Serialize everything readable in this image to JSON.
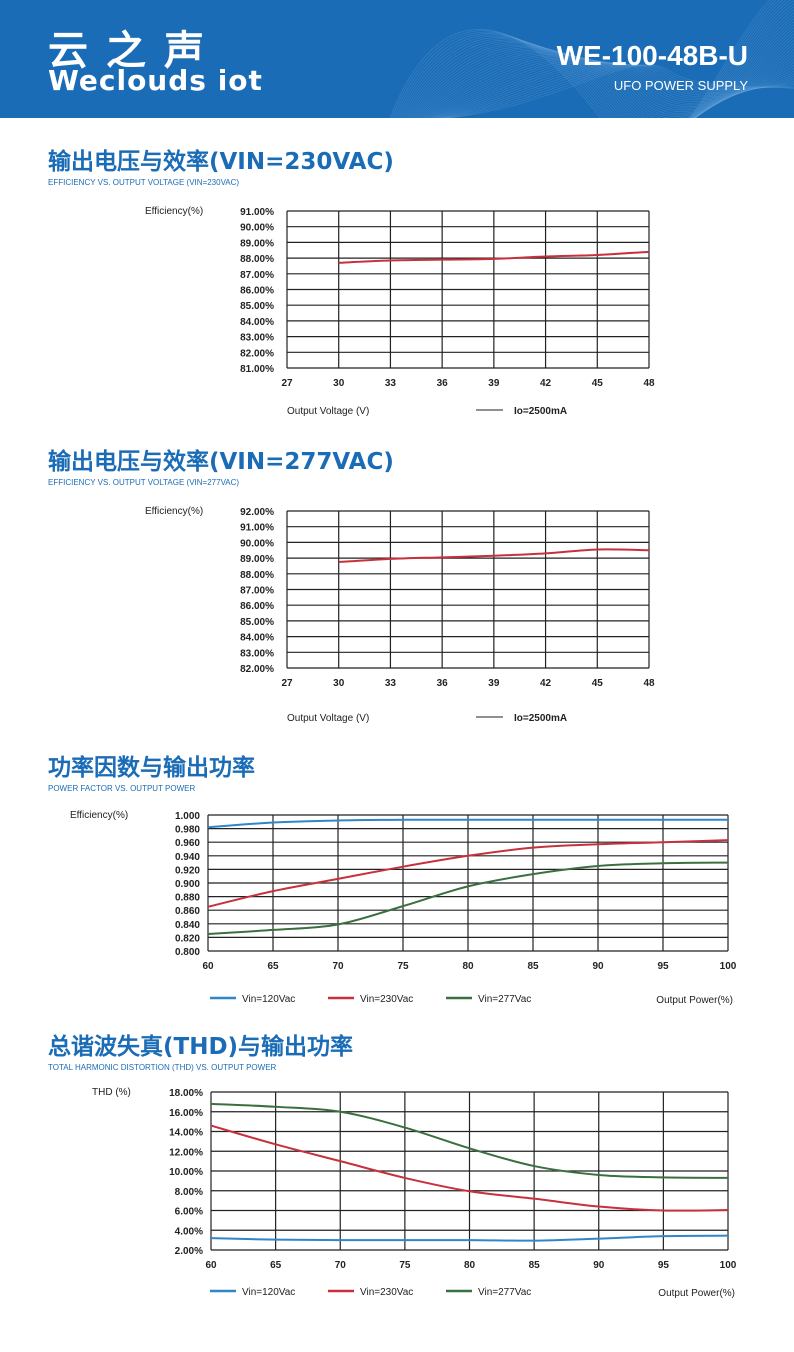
{
  "header": {
    "logo_cn": "云之声",
    "logo_en": "Weclouds iot",
    "model": "WE-100-48B-U",
    "subtitle": "UFO POWER SUPPLY",
    "bg_color": "#1b6cb6"
  },
  "sections": [
    {
      "title": "输出电压与效率(VIN=230VAC)",
      "subtitle": "EFFICIENCY VS. OUTPUT VOLTAGE (VIN=230VAC)"
    },
    {
      "title": "输出电压与效率(VIN=277VAC)",
      "subtitle": "EFFICIENCY VS. OUTPUT VOLTAGE (VIN=277VAC)"
    },
    {
      "title": "功率因数与输出功率",
      "subtitle": "POWER FACTOR VS. OUTPUT POWER"
    },
    {
      "title": "总谐波失真(THD)与输出功率",
      "subtitle": "TOTAL HARMONIC DISTORTION (THD) VS. OUTPUT POWER"
    }
  ],
  "chart_data": [
    {
      "type": "line",
      "ylabel": "Efficiency(%)",
      "xlabel": "Output Voltage (V)",
      "grid": true,
      "xlim": [
        27,
        48
      ],
      "ylim": [
        81,
        91
      ],
      "xticks": [
        "27",
        "30",
        "33",
        "36",
        "39",
        "42",
        "45",
        "48"
      ],
      "yticks": [
        "91.00%",
        "90.00%",
        "89.00%",
        "88.00%",
        "87.00%",
        "86.00%",
        "85.00%",
        "84.00%",
        "83.00%",
        "82.00%",
        "81.00%"
      ],
      "legend_line_color": "#222222",
      "series": [
        {
          "name": "Io=2500mA",
          "color": "#c8303c",
          "x": [
            30,
            33,
            36,
            39,
            42,
            45,
            48
          ],
          "values": [
            87.7,
            87.85,
            87.9,
            87.95,
            88.1,
            88.2,
            88.4
          ]
        }
      ]
    },
    {
      "type": "line",
      "ylabel": "Efficiency(%)",
      "xlabel": "Output Voltage (V)",
      "grid": true,
      "xlim": [
        27,
        48
      ],
      "ylim": [
        82,
        92
      ],
      "xticks": [
        "27",
        "30",
        "33",
        "36",
        "39",
        "42",
        "45",
        "48"
      ],
      "yticks": [
        "92.00%",
        "91.00%",
        "90.00%",
        "89.00%",
        "88.00%",
        "87.00%",
        "86.00%",
        "85.00%",
        "84.00%",
        "83.00%",
        "82.00%"
      ],
      "legend_line_color": "#222222",
      "series": [
        {
          "name": "Io=2500mA",
          "color": "#c8303c",
          "x": [
            30,
            33,
            36,
            39,
            42,
            45,
            48
          ],
          "values": [
            88.75,
            88.95,
            89.05,
            89.15,
            89.3,
            89.55,
            89.5
          ]
        }
      ]
    },
    {
      "type": "line",
      "ylabel": "Efficiency(%)",
      "xlabel": "Output Power(%)",
      "grid": true,
      "xlim": [
        60,
        100
      ],
      "ylim": [
        0.8,
        1.0
      ],
      "xticks": [
        "60",
        "65",
        "70",
        "75",
        "80",
        "85",
        "90",
        "95",
        "100"
      ],
      "yticks": [
        "1.000",
        "0.980",
        "0.960",
        "0.940",
        "0.920",
        "0.900",
        "0.880",
        "0.860",
        "0.840",
        "0.820",
        "0.800"
      ],
      "series": [
        {
          "name": "Vin=120Vac",
          "color": "#2f86c8",
          "x": [
            60,
            65,
            70,
            75,
            80,
            85,
            90,
            95,
            100
          ],
          "values": [
            0.982,
            0.989,
            0.992,
            0.993,
            0.993,
            0.993,
            0.993,
            0.993,
            0.993
          ]
        },
        {
          "name": "Vin=230Vac",
          "color": "#c8303c",
          "x": [
            60,
            65,
            70,
            75,
            80,
            85,
            90,
            95,
            100
          ],
          "values": [
            0.865,
            0.888,
            0.906,
            0.924,
            0.94,
            0.952,
            0.957,
            0.96,
            0.963
          ]
        },
        {
          "name": "Vin=277Vac",
          "color": "#3a7040",
          "x": [
            60,
            65,
            70,
            75,
            80,
            85,
            90,
            95,
            100
          ],
          "values": [
            0.825,
            0.831,
            0.839,
            0.866,
            0.895,
            0.913,
            0.925,
            0.929,
            0.93
          ]
        }
      ]
    },
    {
      "type": "line",
      "ylabel": "THD (%)",
      "xlabel": "Output Power(%)",
      "grid": true,
      "xlim": [
        60,
        100
      ],
      "ylim": [
        2,
        18
      ],
      "xticks": [
        "60",
        "65",
        "70",
        "75",
        "80",
        "85",
        "90",
        "95",
        "100"
      ],
      "yticks": [
        "18.00%",
        "16.00%",
        "14.00%",
        "12.00%",
        "10.00%",
        "8.00%",
        "6.00%",
        "4.00%",
        "2.00%"
      ],
      "series": [
        {
          "name": "Vin=120Vac",
          "color": "#2f86c8",
          "x": [
            60,
            65,
            70,
            75,
            80,
            85,
            90,
            95,
            100
          ],
          "values": [
            3.2,
            3.05,
            3.0,
            3.0,
            3.0,
            2.95,
            3.15,
            3.4,
            3.45
          ]
        },
        {
          "name": "Vin=230Vac",
          "color": "#c8303c",
          "x": [
            60,
            65,
            70,
            75,
            80,
            85,
            90,
            95,
            100
          ],
          "values": [
            14.6,
            12.7,
            11.0,
            9.3,
            7.95,
            7.2,
            6.4,
            6.0,
            6.05
          ]
        },
        {
          "name": "Vin=277Vac",
          "color": "#3a7040",
          "x": [
            60,
            65,
            70,
            75,
            80,
            85,
            90,
            95,
            100
          ],
          "values": [
            16.8,
            16.5,
            16.0,
            14.4,
            12.3,
            10.5,
            9.6,
            9.35,
            9.3
          ]
        }
      ]
    }
  ]
}
